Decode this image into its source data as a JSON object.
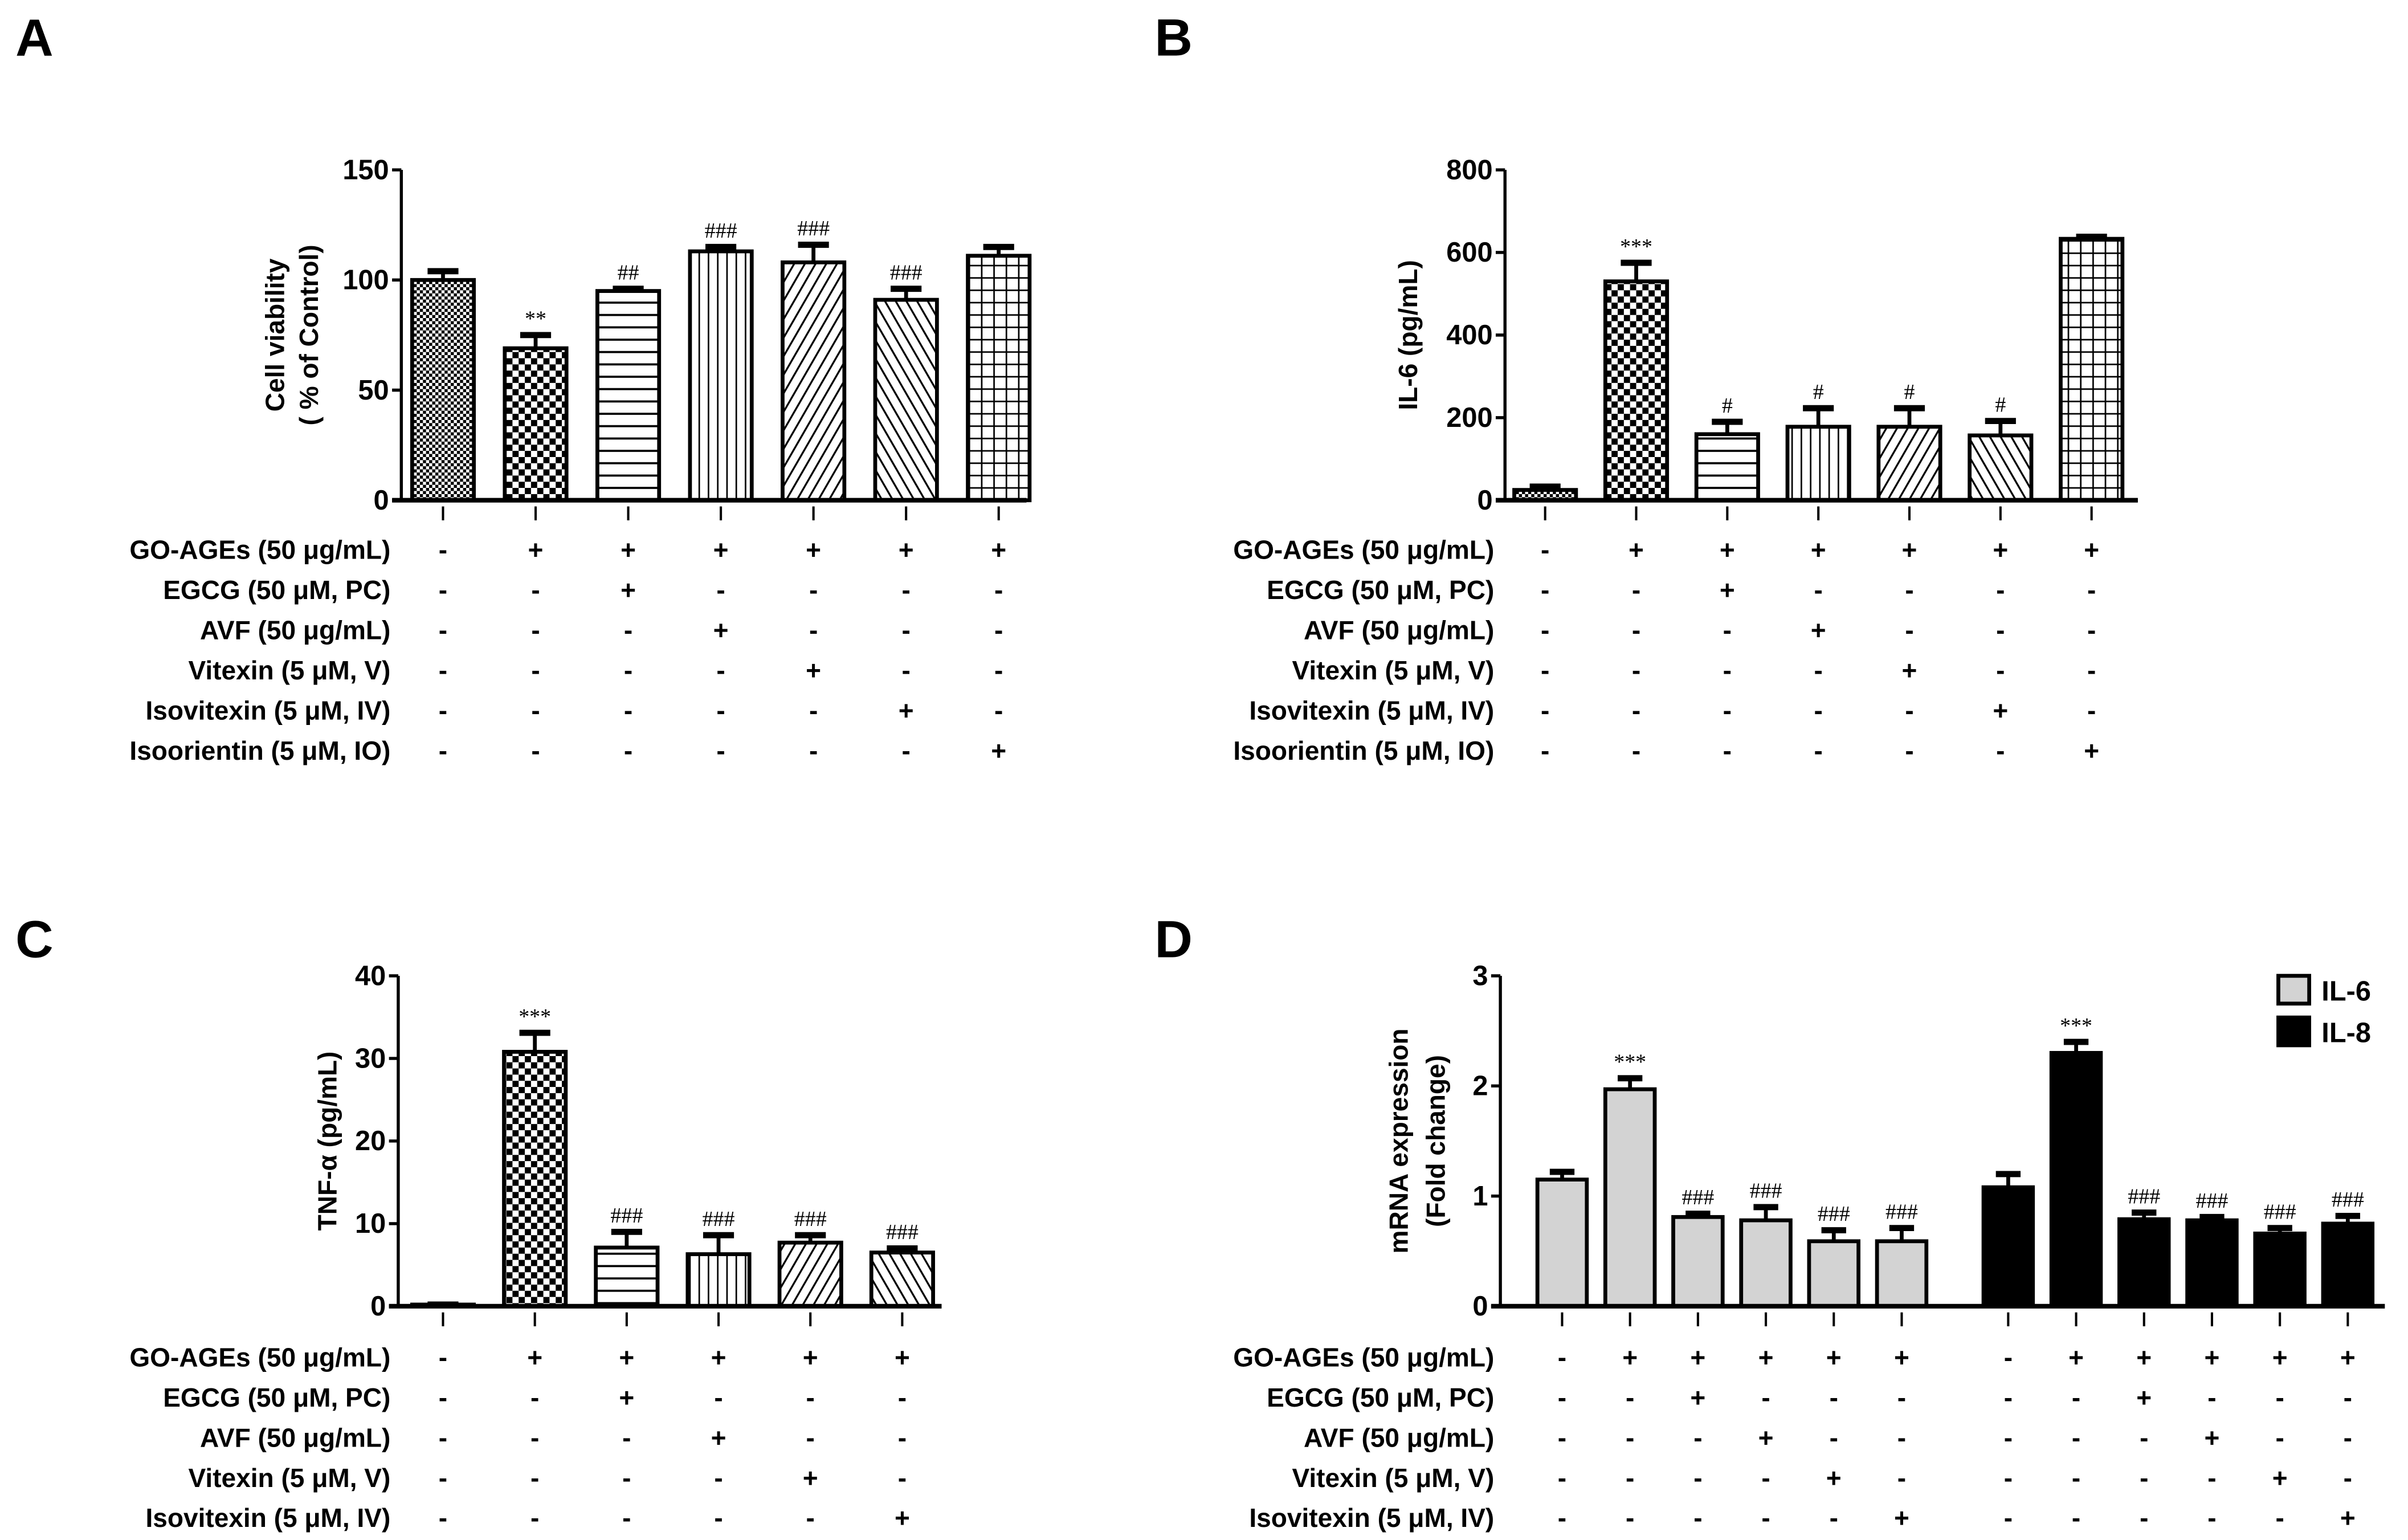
{
  "chart_data": [
    {
      "panel": "A",
      "type": "bar",
      "ylabel": [
        "Cell viability",
        "( % of Control)"
      ],
      "ylim": [
        0,
        150
      ],
      "yticks": [
        0,
        50,
        100,
        150
      ],
      "values": [
        100,
        69,
        95,
        113,
        108,
        91,
        111
      ],
      "errors": [
        4,
        6,
        1,
        2,
        8,
        5,
        4
      ],
      "annotations": [
        "",
        "**",
        "##",
        "###",
        "###",
        "###",
        ""
      ],
      "patterns": [
        "fine-dots",
        "checker",
        "horizontal-lines",
        "vertical-lines",
        "diagonal-right",
        "diagonal-left",
        "grid"
      ],
      "conditions": [
        {
          "label": "GO-AGEs (50 μg/mL)",
          "signs": [
            "-",
            "+",
            "+",
            "+",
            "+",
            "+",
            "+"
          ]
        },
        {
          "label": "EGCG (50 μM, PC)",
          "signs": [
            "-",
            "-",
            "+",
            "-",
            "-",
            "-",
            "-"
          ]
        },
        {
          "label": "AVF (50 μg/mL)",
          "signs": [
            "-",
            "-",
            "-",
            "+",
            "-",
            "-",
            "-"
          ]
        },
        {
          "label": "Vitexin (5 μM, V)",
          "signs": [
            "-",
            "-",
            "-",
            "-",
            "+",
            "-",
            "-"
          ]
        },
        {
          "label": "Isovitexin (5 μM, IV)",
          "signs": [
            "-",
            "-",
            "-",
            "-",
            "-",
            "+",
            "-"
          ]
        },
        {
          "label": "Isoorientin (5 μM, IO)",
          "signs": [
            "-",
            "-",
            "-",
            "-",
            "-",
            "-",
            "+"
          ]
        }
      ]
    },
    {
      "panel": "B",
      "type": "bar",
      "ylabel": [
        "IL-6 (pg/mL)"
      ],
      "ylim": [
        0,
        800
      ],
      "yticks": [
        0,
        200,
        400,
        600,
        800
      ],
      "values": [
        25,
        530,
        160,
        178,
        178,
        157,
        633
      ],
      "errors": [
        8,
        45,
        30,
        45,
        45,
        35,
        5
      ],
      "annotations": [
        "",
        "***",
        "#",
        "#",
        "#",
        "#",
        ""
      ],
      "patterns": [
        "fine-dots",
        "checker",
        "horizontal-lines",
        "vertical-lines",
        "diagonal-right",
        "diagonal-left",
        "grid"
      ],
      "conditions": [
        {
          "label": "GO-AGEs (50 μg/mL)",
          "signs": [
            "-",
            "+",
            "+",
            "+",
            "+",
            "+",
            "+"
          ]
        },
        {
          "label": "EGCG (50 μM, PC)",
          "signs": [
            "-",
            "-",
            "+",
            "-",
            "-",
            "-",
            "-"
          ]
        },
        {
          "label": "AVF (50 μg/mL)",
          "signs": [
            "-",
            "-",
            "-",
            "+",
            "-",
            "-",
            "-"
          ]
        },
        {
          "label": "Vitexin (5 μM, V)",
          "signs": [
            "-",
            "-",
            "-",
            "-",
            "+",
            "-",
            "-"
          ]
        },
        {
          "label": "Isovitexin (5 μM, IV)",
          "signs": [
            "-",
            "-",
            "-",
            "-",
            "-",
            "+",
            "-"
          ]
        },
        {
          "label": "Isoorientin (5 μM, IO)",
          "signs": [
            "-",
            "-",
            "-",
            "-",
            "-",
            "-",
            "+"
          ]
        }
      ]
    },
    {
      "panel": "C",
      "type": "bar",
      "ylabel": [
        "TNF-α (pg/mL)"
      ],
      "ylim": [
        0,
        40
      ],
      "yticks": [
        0,
        10,
        20,
        30,
        40
      ],
      "values": [
        0.2,
        30.8,
        7.1,
        6.3,
        7.7,
        6.5
      ],
      "errors": [
        0,
        2.3,
        1.9,
        2.3,
        0.9,
        0.5
      ],
      "annotations": [
        "",
        "***",
        "###",
        "###",
        "###",
        "###"
      ],
      "patterns": [
        "fine-dots",
        "checker",
        "horizontal-lines",
        "vertical-lines",
        "diagonal-right",
        "diagonal-left"
      ],
      "conditions": [
        {
          "label": "GO-AGEs (50 μg/mL)",
          "signs": [
            "-",
            "+",
            "+",
            "+",
            "+",
            "+"
          ]
        },
        {
          "label": "EGCG (50 μM, PC)",
          "signs": [
            "-",
            "-",
            "+",
            "-",
            "-",
            "-"
          ]
        },
        {
          "label": "AVF (50 μg/mL)",
          "signs": [
            "-",
            "-",
            "-",
            "+",
            "-",
            "-"
          ]
        },
        {
          "label": "Vitexin (5 μM, V)",
          "signs": [
            "-",
            "-",
            "-",
            "-",
            "+",
            "-"
          ]
        },
        {
          "label": "Isovitexin (5 μM, IV)",
          "signs": [
            "-",
            "-",
            "-",
            "-",
            "-",
            "+"
          ]
        }
      ]
    },
    {
      "panel": "D",
      "type": "bar",
      "ylabel": [
        "mRNA expression",
        "(Fold change)"
      ],
      "ylim": [
        0,
        3
      ],
      "yticks": [
        0,
        1,
        2,
        3
      ],
      "legend_position": "top-right",
      "series": [
        {
          "name": "IL-6",
          "color": "#d3d3d3",
          "values": [
            1.15,
            1.97,
            0.81,
            0.78,
            0.59,
            0.59
          ],
          "errors": [
            0.07,
            0.1,
            0.03,
            0.12,
            0.1,
            0.12
          ],
          "annotations": [
            "",
            "***",
            "###",
            "###",
            "###",
            "###"
          ]
        },
        {
          "name": "IL-8",
          "color": "#000000",
          "values": [
            1.08,
            2.3,
            0.79,
            0.78,
            0.66,
            0.75
          ],
          "errors": [
            0.12,
            0.1,
            0.06,
            0.03,
            0.05,
            0.07
          ],
          "annotations": [
            "",
            "***",
            "###",
            "###",
            "###",
            "###"
          ]
        }
      ],
      "conditions": [
        {
          "label": "GO-AGEs (50 μg/mL)",
          "signs": [
            "-",
            "+",
            "+",
            "+",
            "+",
            "+",
            "-",
            "+",
            "+",
            "+",
            "+",
            "+"
          ]
        },
        {
          "label": "EGCG (50 μM, PC)",
          "signs": [
            "-",
            "-",
            "+",
            "-",
            "-",
            "-",
            "-",
            "-",
            "+",
            "-",
            "-",
            "-"
          ]
        },
        {
          "label": "AVF (50 μg/mL)",
          "signs": [
            "-",
            "-",
            "-",
            "+",
            "-",
            "-",
            "-",
            "-",
            "-",
            "+",
            "-",
            "-"
          ]
        },
        {
          "label": "Vitexin (5 μM, V)",
          "signs": [
            "-",
            "-",
            "-",
            "-",
            "+",
            "-",
            "-",
            "-",
            "-",
            "-",
            "+",
            "-"
          ]
        },
        {
          "label": "Isovitexin (5 μM, IV)",
          "signs": [
            "-",
            "-",
            "-",
            "-",
            "-",
            "+",
            "-",
            "-",
            "-",
            "-",
            "-",
            "+"
          ]
        }
      ]
    }
  ]
}
